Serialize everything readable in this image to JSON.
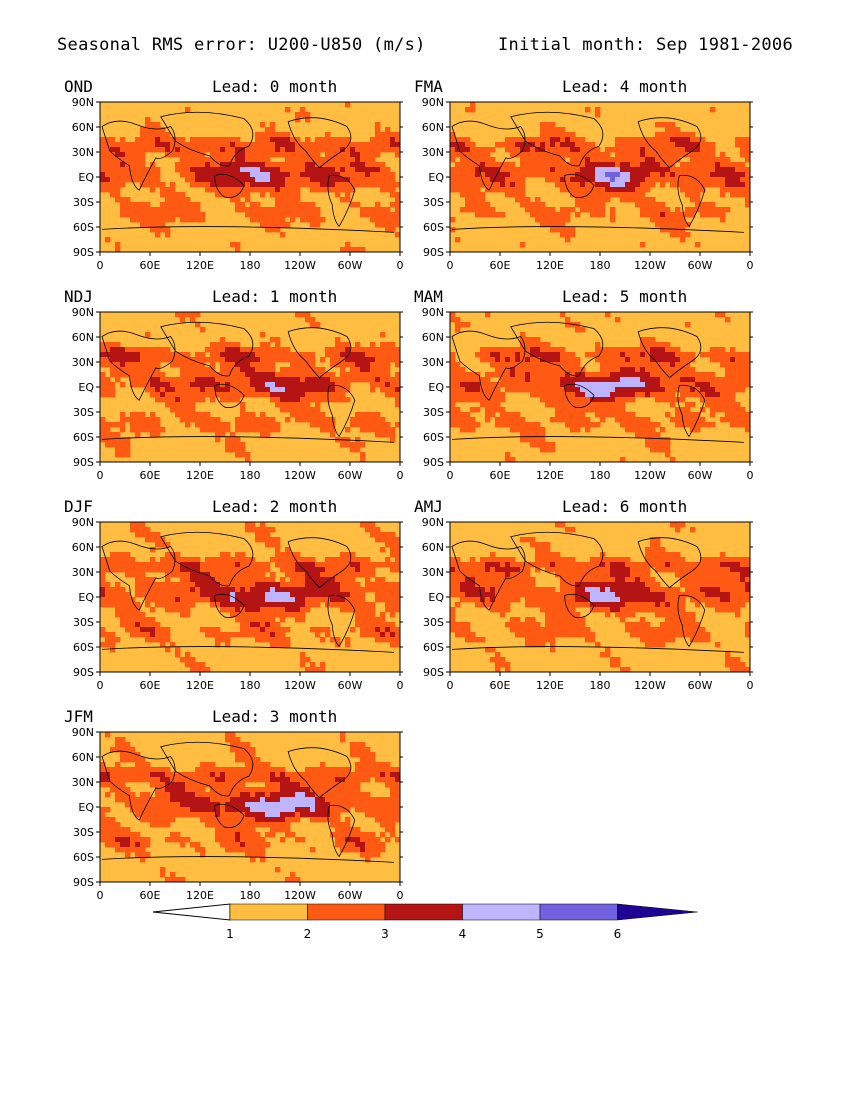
{
  "header": {
    "title": "Seasonal RMS error: U200-U850 (m/s)",
    "initial": "Initial month: Sep 1981-2006"
  },
  "panels": [
    {
      "season": "OND",
      "lead": "Lead: 0 month"
    },
    {
      "season": "NDJ",
      "lead": "Lead: 1 month"
    },
    {
      "season": "DJF",
      "lead": "Lead: 2 month"
    },
    {
      "season": "JFM",
      "lead": "Lead: 3 month"
    },
    {
      "season": "FMA",
      "lead": "Lead: 4 month"
    },
    {
      "season": "MAM",
      "lead": "Lead: 5 month"
    },
    {
      "season": "AMJ",
      "lead": "Lead: 6 month"
    }
  ],
  "axes": {
    "lat_ticks": [
      "90N",
      "60N",
      "30N",
      "EQ",
      "30S",
      "60S",
      "90S"
    ],
    "lon_ticks": [
      "0",
      "60E",
      "120E",
      "180",
      "120W",
      "60W",
      "0"
    ]
  },
  "colorbar": {
    "labels": [
      "1",
      "2",
      "3",
      "4",
      "5",
      "6"
    ],
    "colors": [
      "#ffffff",
      "#ffbe41",
      "#ff5a14",
      "#b41414",
      "#beb4ff",
      "#7362e0",
      "#1e0596"
    ]
  }
}
